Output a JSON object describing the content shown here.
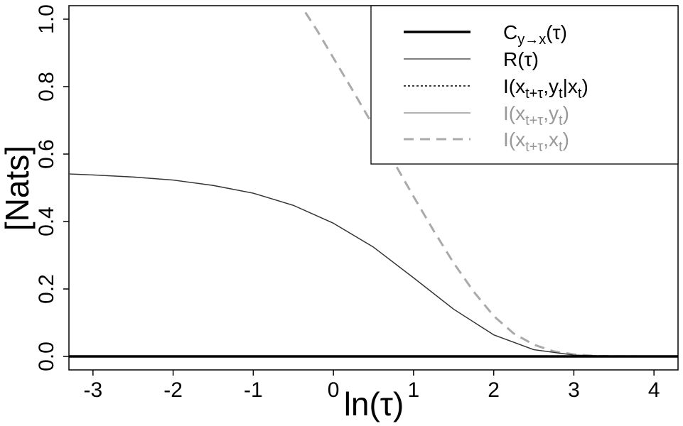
{
  "chart_data": {
    "type": "line",
    "title": "",
    "xlabel": "ln(τ)",
    "ylabel": "[Nats]",
    "xlim": [
      -3.3,
      4.3
    ],
    "ylim": [
      -0.04,
      1.04
    ],
    "x_ticks": [
      -3,
      -2,
      -1,
      0,
      1,
      2,
      3,
      4
    ],
    "x_tick_labels": [
      "-3",
      "-2",
      "-1",
      "0",
      "1",
      "2",
      "3",
      "4"
    ],
    "y_ticks": [
      0.0,
      0.2,
      0.4,
      0.6,
      0.8,
      1.0
    ],
    "y_tick_labels": [
      "0.0",
      "0.2",
      "0.4",
      "0.6",
      "0.8",
      "1.0"
    ],
    "grid": false,
    "legend_position": "top-right",
    "series": [
      {
        "name": "C_{y→x}(τ)",
        "color": "#000000",
        "style": "solid-thick",
        "x": [
          -3.3,
          4.3
        ],
        "y": [
          0.0,
          0.0
        ]
      },
      {
        "name": "R(τ)",
        "color": "#333333",
        "style": "solid-thin",
        "x": [
          -3.3,
          -3,
          -2.5,
          -2,
          -1.5,
          -1,
          -0.5,
          0,
          0.5,
          1,
          1.5,
          2,
          2.5,
          3,
          3.5,
          4,
          4.3
        ],
        "y": [
          0.541,
          0.538,
          0.532,
          0.523,
          0.507,
          0.484,
          0.448,
          0.395,
          0.324,
          0.233,
          0.14,
          0.064,
          0.02,
          0.004,
          0.0005,
          0.0,
          0.0
        ]
      },
      {
        "name": "I(x_{t+τ},y_t|x_t)",
        "color": "#000000",
        "style": "dotted",
        "x": [
          -3.3,
          4.3
        ],
        "y": [
          0.0,
          0.0
        ]
      },
      {
        "name": "I(x_{t+τ},y_t)",
        "color": "#999999",
        "style": "solid-gray",
        "x": [
          -3.3,
          -3,
          -2.5,
          -2,
          -1.5,
          -1,
          -0.5,
          0,
          0.5,
          1,
          1.5,
          2,
          2.5,
          3,
          3.5,
          4,
          4.3
        ],
        "y": [
          0.541,
          0.538,
          0.532,
          0.523,
          0.507,
          0.484,
          0.448,
          0.395,
          0.324,
          0.233,
          0.14,
          0.064,
          0.02,
          0.004,
          0.0005,
          0.0,
          0.0
        ]
      },
      {
        "name": "I(x_{t+τ},x_t)",
        "color": "#aaaaaa",
        "style": "dashed",
        "x": [
          -0.35,
          -0.2,
          0,
          0.25,
          0.5,
          0.75,
          1,
          1.25,
          1.5,
          1.75,
          2,
          2.25,
          2.5,
          2.75,
          3,
          3.25,
          3.5,
          4,
          4.3
        ],
        "y": [
          1.02,
          0.965,
          0.885,
          0.785,
          0.683,
          0.578,
          0.474,
          0.373,
          0.277,
          0.192,
          0.12,
          0.068,
          0.035,
          0.015,
          0.006,
          0.002,
          0.0005,
          0.0,
          0.0
        ]
      }
    ],
    "legend": [
      {
        "base": "C",
        "sub": "y→x",
        "tail": "(τ)",
        "color": "#000000"
      },
      {
        "base": "R(τ)",
        "sub": "",
        "tail": "",
        "color": "#000000"
      },
      {
        "base": "I(x",
        "sub": "t+τ",
        "mid": ",y",
        "sub2": "t",
        "tail": "|x",
        "sub3": "t",
        "end": ")",
        "color": "#000000"
      },
      {
        "base": "I(x",
        "sub": "t+τ",
        "mid": ",y",
        "sub2": "t",
        "end": ")",
        "color": "#999999"
      },
      {
        "base": "I(x",
        "sub": "t+τ",
        "mid": ",x",
        "sub2": "t",
        "end": ")",
        "color": "#999999"
      }
    ]
  }
}
